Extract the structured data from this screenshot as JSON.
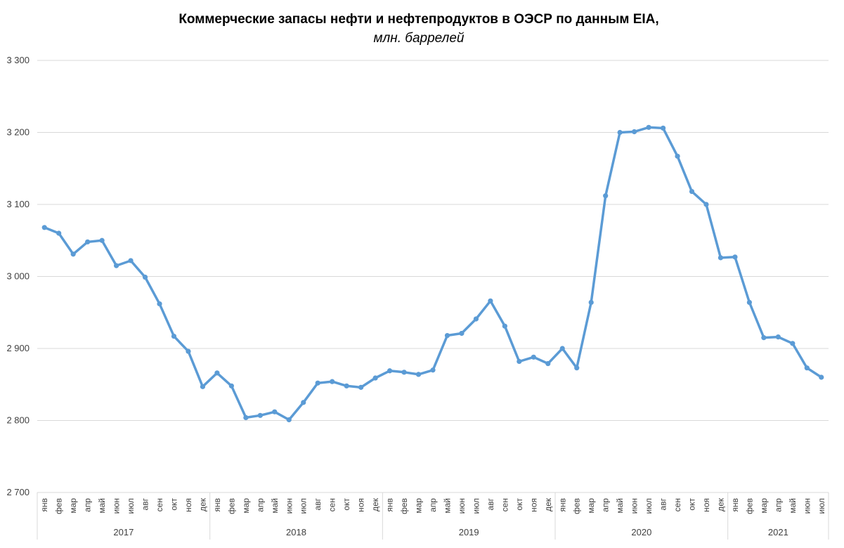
{
  "chart_data": {
    "type": "line",
    "title": "Коммерческие запасы нефти и нефтепродуктов в ОЭСР по данным EIA,",
    "subtitle": "млн. баррелей",
    "ylim": [
      2700,
      3300
    ],
    "yticks": [
      2700,
      2800,
      2900,
      3000,
      3100,
      3200,
      3300
    ],
    "ytick_labels": [
      "2 700",
      "2 800",
      "2 900",
      "3 000",
      "3 100",
      "3 200",
      "3 300"
    ],
    "grid": true,
    "legend": "none",
    "line_color": "#5b9bd5",
    "grid_color": "#d9d9d9",
    "years": [
      {
        "label": "2017",
        "months": 12
      },
      {
        "label": "2018",
        "months": 12
      },
      {
        "label": "2019",
        "months": 12
      },
      {
        "label": "2020",
        "months": 12
      },
      {
        "label": "2021",
        "months": 7
      }
    ],
    "categories": [
      "янв",
      "фев",
      "мар",
      "апр",
      "май",
      "июн",
      "июл",
      "авг",
      "сен",
      "окт",
      "ноя",
      "дек",
      "янв",
      "фев",
      "мар",
      "апр",
      "май",
      "июн",
      "июл",
      "авг",
      "сен",
      "окт",
      "ноя",
      "дек",
      "янв",
      "фев",
      "мар",
      "апр",
      "май",
      "июн",
      "июл",
      "авг",
      "сен",
      "окт",
      "ноя",
      "дек",
      "янв",
      "фев",
      "мар",
      "апр",
      "май",
      "июн",
      "июл",
      "авг",
      "сен",
      "окт",
      "ноя",
      "дек",
      "янв",
      "фев",
      "мар",
      "апр",
      "май",
      "июн",
      "июл"
    ],
    "values": [
      3068,
      3060,
      3031,
      3048,
      3050,
      3015,
      3022,
      2999,
      2962,
      2917,
      2896,
      2847,
      2866,
      2848,
      2804,
      2807,
      2812,
      2801,
      2825,
      2852,
      2854,
      2848,
      2846,
      2859,
      2869,
      2867,
      2864,
      2870,
      2918,
      2921,
      2941,
      2966,
      2931,
      2882,
      2888,
      2879,
      2900,
      2873,
      2964,
      3112,
      3200,
      3201,
      3207,
      3206,
      3167,
      3118,
      3100,
      3026,
      3027,
      2964,
      2915,
      2916,
      2907,
      2873,
      2860
    ]
  }
}
